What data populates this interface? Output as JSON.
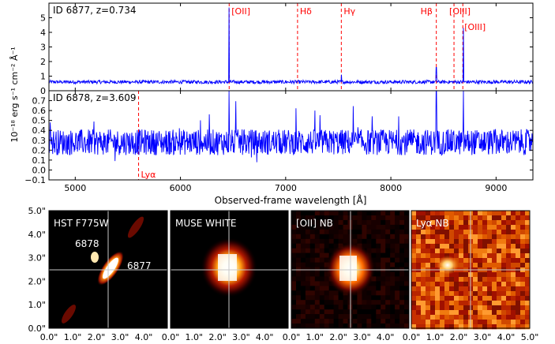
{
  "chart_data": [
    {
      "type": "line",
      "panel": "top-spectrum",
      "label": "ID 6877, z=0.734",
      "xlim": [
        4750,
        9350
      ],
      "ylim": [
        0,
        6
      ],
      "yticks": [
        "0",
        "1",
        "2",
        "3",
        "4",
        "5"
      ],
      "line_color": "#0000ff",
      "baseline": 0.6,
      "noise": 0.12,
      "emission_lines": [
        {
          "x": 6463,
          "height": 5.7
        },
        {
          "x": 7530,
          "height": 1.1
        },
        {
          "x": 8432,
          "height": 1.6
        },
        {
          "x": 8690,
          "height": 4.3
        }
      ],
      "markers": [
        {
          "x": 6463,
          "label": "[OII]"
        },
        {
          "x": 7113,
          "label": "Hδ"
        },
        {
          "x": 7529,
          "label": "Hγ"
        },
        {
          "x": 8432,
          "label": "Hβ"
        },
        {
          "x": 8600,
          "label": "[OIII]"
        },
        {
          "x": 8684,
          "label": "[OIII]"
        }
      ]
    },
    {
      "type": "line",
      "panel": "bottom-spectrum",
      "label": "ID 6878, z=3.609",
      "xlim": [
        4750,
        9350
      ],
      "ylim": [
        -0.1,
        0.8
      ],
      "yticks": [
        "−0.1",
        "0.0",
        "0.1",
        "0.2",
        "0.3",
        "0.4",
        "0.5",
        "0.6",
        "0.7"
      ],
      "xticks": [
        "5000",
        "6000",
        "7000",
        "8000",
        "9000"
      ],
      "xlabel": "Observed-frame wavelength [Å]",
      "line_color": "#0000ff",
      "baseline": 0.28,
      "noise": 0.13,
      "emission_lines": [
        {
          "x": 6463,
          "height": 0.8
        },
        {
          "x": 8432,
          "height": 0.8
        },
        {
          "x": 8690,
          "height": 0.8
        }
      ],
      "markers": [
        {
          "x": 5602,
          "label": "Lyα"
        }
      ]
    },
    {
      "type": "heatmap",
      "panel": "cutouts",
      "axis_ticks": [
        "0.0\"",
        "1.0\"",
        "2.0\"",
        "3.0\"",
        "4.0\"",
        "5.0\""
      ],
      "crosshair": [
        2.5,
        2.5
      ],
      "images": [
        {
          "label": "HST F775W",
          "sources": [
            "6878",
            "6877"
          ]
        },
        {
          "label": "MUSE WHITE"
        },
        {
          "label": "[OII] NB"
        },
        {
          "label": "Lyα NB"
        }
      ]
    }
  ],
  "ylabel": "10⁻¹⁸ erg s⁻¹ cm⁻² Å⁻¹",
  "colors": {
    "spectrum": "#0000ff",
    "marker": "#ff0000",
    "crosshair": "#c8c8c8"
  }
}
